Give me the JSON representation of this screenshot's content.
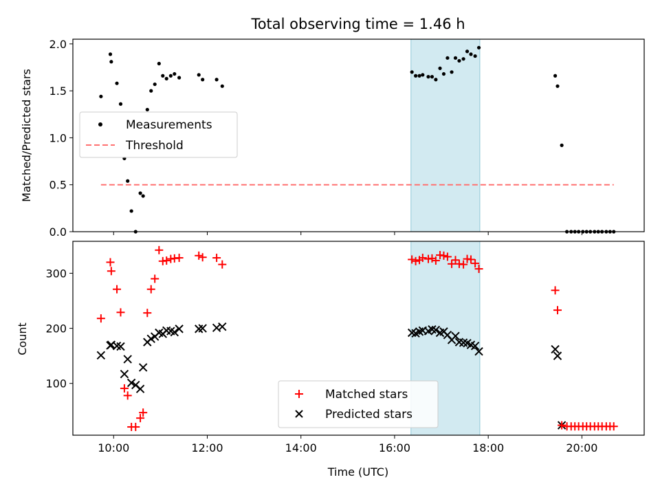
{
  "chart_data": [
    {
      "type": "scatter",
      "title": "Total observing time = 1.46 h",
      "ylabel": "Matched/Predicted stars",
      "xlabel": "",
      "x_unit": "hours UTC",
      "xlim": [
        9.13,
        21.33
      ],
      "ylim": [
        0,
        2.05
      ],
      "yticks": [
        0.0,
        0.5,
        1.0,
        1.5,
        2.0
      ],
      "ytick_labels": [
        "0.0",
        "0.5",
        "1.0",
        "1.5",
        "2.0"
      ],
      "shaded_region": {
        "x_start": 16.35,
        "x_end": 17.82,
        "color": "#add8e6"
      },
      "legend_position": "center-left",
      "series": [
        {
          "name": "Measurements",
          "marker": "dot",
          "color": "#000000",
          "x": [
            9.73,
            9.93,
            9.95,
            10.07,
            10.15,
            10.23,
            10.3,
            10.38,
            10.47,
            10.57,
            10.63,
            10.72,
            10.8,
            10.88,
            10.97,
            11.05,
            11.13,
            11.22,
            11.3,
            11.4,
            11.82,
            11.9,
            12.2,
            12.32,
            16.37,
            16.45,
            16.53,
            16.6,
            16.72,
            16.8,
            16.88,
            16.97,
            17.05,
            17.13,
            17.22,
            17.3,
            17.38,
            17.47,
            17.55,
            17.63,
            17.72,
            17.8,
            19.43,
            19.48,
            19.57,
            19.68,
            19.77,
            19.85,
            19.93,
            20.02,
            20.1,
            20.18,
            20.27,
            20.35,
            20.43,
            20.52,
            20.6,
            20.68
          ],
          "y": [
            1.44,
            1.89,
            1.81,
            1.58,
            1.36,
            0.78,
            0.54,
            0.22,
            0.0,
            0.41,
            0.38,
            1.3,
            1.5,
            1.57,
            1.79,
            1.66,
            1.63,
            1.66,
            1.68,
            1.64,
            1.67,
            1.62,
            1.62,
            1.55,
            1.7,
            1.66,
            1.66,
            1.67,
            1.65,
            1.65,
            1.62,
            1.74,
            1.68,
            1.85,
            1.7,
            1.85,
            1.82,
            1.84,
            1.92,
            1.89,
            1.87,
            1.96,
            1.66,
            1.55,
            0.92,
            0.0,
            0.0,
            0.0,
            0.0,
            0.0,
            0.0,
            0.0,
            0.0,
            0.0,
            0.0,
            0.0,
            0.0,
            0.0
          ]
        },
        {
          "name": "Threshold",
          "type": "line",
          "style": "dashed",
          "color": "#ff7070",
          "x": [
            9.73,
            20.68
          ],
          "y": [
            0.5,
            0.5
          ]
        }
      ]
    },
    {
      "type": "scatter",
      "title": "",
      "ylabel": "Count",
      "xlabel": "Time (UTC)",
      "x_unit": "hours UTC",
      "xlim": [
        9.13,
        21.33
      ],
      "ylim": [
        6,
        358
      ],
      "yticks": [
        100,
        200,
        300
      ],
      "ytick_labels": [
        "100",
        "200",
        "300"
      ],
      "xticks": [
        10,
        12,
        14,
        16,
        18,
        20
      ],
      "xtick_labels": [
        "10:00",
        "12:00",
        "14:00",
        "16:00",
        "18:00",
        "20:00"
      ],
      "shaded_region": {
        "x_start": 16.35,
        "x_end": 17.82,
        "color": "#add8e6"
      },
      "legend_position": "lower-center",
      "x": [
        9.73,
        9.93,
        9.95,
        10.07,
        10.15,
        10.23,
        10.3,
        10.38,
        10.47,
        10.57,
        10.63,
        10.72,
        10.8,
        10.88,
        10.97,
        11.05,
        11.13,
        11.22,
        11.3,
        11.4,
        11.82,
        11.9,
        12.2,
        12.32,
        16.37,
        16.45,
        16.53,
        16.6,
        16.72,
        16.8,
        16.88,
        16.97,
        17.05,
        17.13,
        17.22,
        17.3,
        17.38,
        17.47,
        17.55,
        17.63,
        17.72,
        17.8,
        19.43,
        19.48,
        19.57,
        19.68,
        19.77,
        19.85,
        19.93,
        20.02,
        20.1,
        20.18,
        20.27,
        20.35,
        20.43,
        20.52,
        20.6,
        20.68
      ],
      "series": [
        {
          "name": "Matched stars",
          "marker": "plus",
          "color": "#ff0000",
          "values": [
            218,
            320,
            304,
            271,
            229,
            91,
            78,
            21,
            21,
            37,
            47,
            228,
            271,
            290,
            342,
            322,
            323,
            326,
            327,
            328,
            332,
            329,
            328,
            316,
            325,
            322,
            324,
            328,
            326,
            327,
            323,
            333,
            332,
            330,
            317,
            324,
            317,
            316,
            326,
            325,
            318,
            308,
            269,
            233,
            24,
            22,
            22,
            22,
            22,
            22,
            22,
            22,
            22,
            22,
            22,
            22,
            22,
            22
          ]
        },
        {
          "name": "Predicted stars",
          "marker": "x",
          "color": "#000000",
          "values": [
            151,
            169,
            170,
            168,
            167,
            117,
            144,
            101,
            97,
            90,
            129,
            175,
            181,
            185,
            192,
            190,
            196,
            195,
            193,
            199,
            199,
            200,
            201,
            203,
            192,
            191,
            194,
            196,
            195,
            198,
            197,
            192,
            194,
            188,
            179,
            186,
            175,
            174,
            173,
            170,
            168,
            158,
            162,
            150,
            24,
            null,
            null,
            null,
            null,
            null,
            null,
            null,
            null,
            null,
            null,
            null,
            null,
            null
          ]
        }
      ]
    }
  ]
}
